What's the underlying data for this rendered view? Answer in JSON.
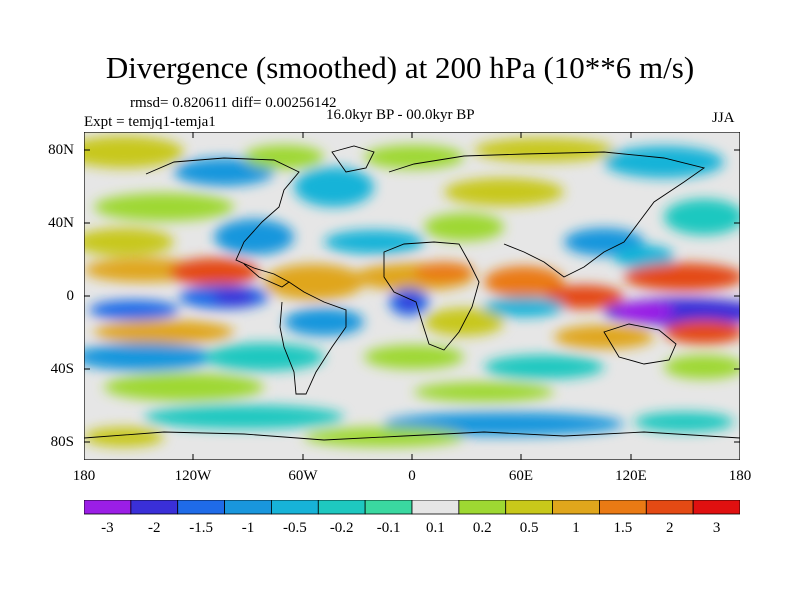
{
  "title": "Divergence (smoothed) at 200 hPa (10**6 m/s)",
  "stats": "rmsd= 0.820611 diff= 0.00256142",
  "experiment": "Expt = temjq1-temja1",
  "period": "16.0kyr BP - 00.0kyr BP",
  "season": "JJA",
  "lat_ticks": [
    "80N",
    "40N",
    "0",
    "40S",
    "80S"
  ],
  "lon_ticks": [
    "180",
    "120W",
    "60W",
    "0",
    "60E",
    "120E",
    "180"
  ],
  "colorbar": {
    "labels": [
      "-3",
      "-2",
      "-1.5",
      "-1",
      "-0.5",
      "-0.2",
      "-0.1",
      "0.1",
      "0.2",
      "0.5",
      "1",
      "1.5",
      "2",
      "3"
    ],
    "colors": [
      "#9b1ee6",
      "#3a2fd8",
      "#1f6be8",
      "#1996dd",
      "#17b3d8",
      "#1ec8c0",
      "#3ad8a0",
      "#e6e6e6",
      "#9ed832",
      "#c8c81a",
      "#e0a61c",
      "#ea7a14",
      "#e44a14",
      "#e01010"
    ]
  }
}
